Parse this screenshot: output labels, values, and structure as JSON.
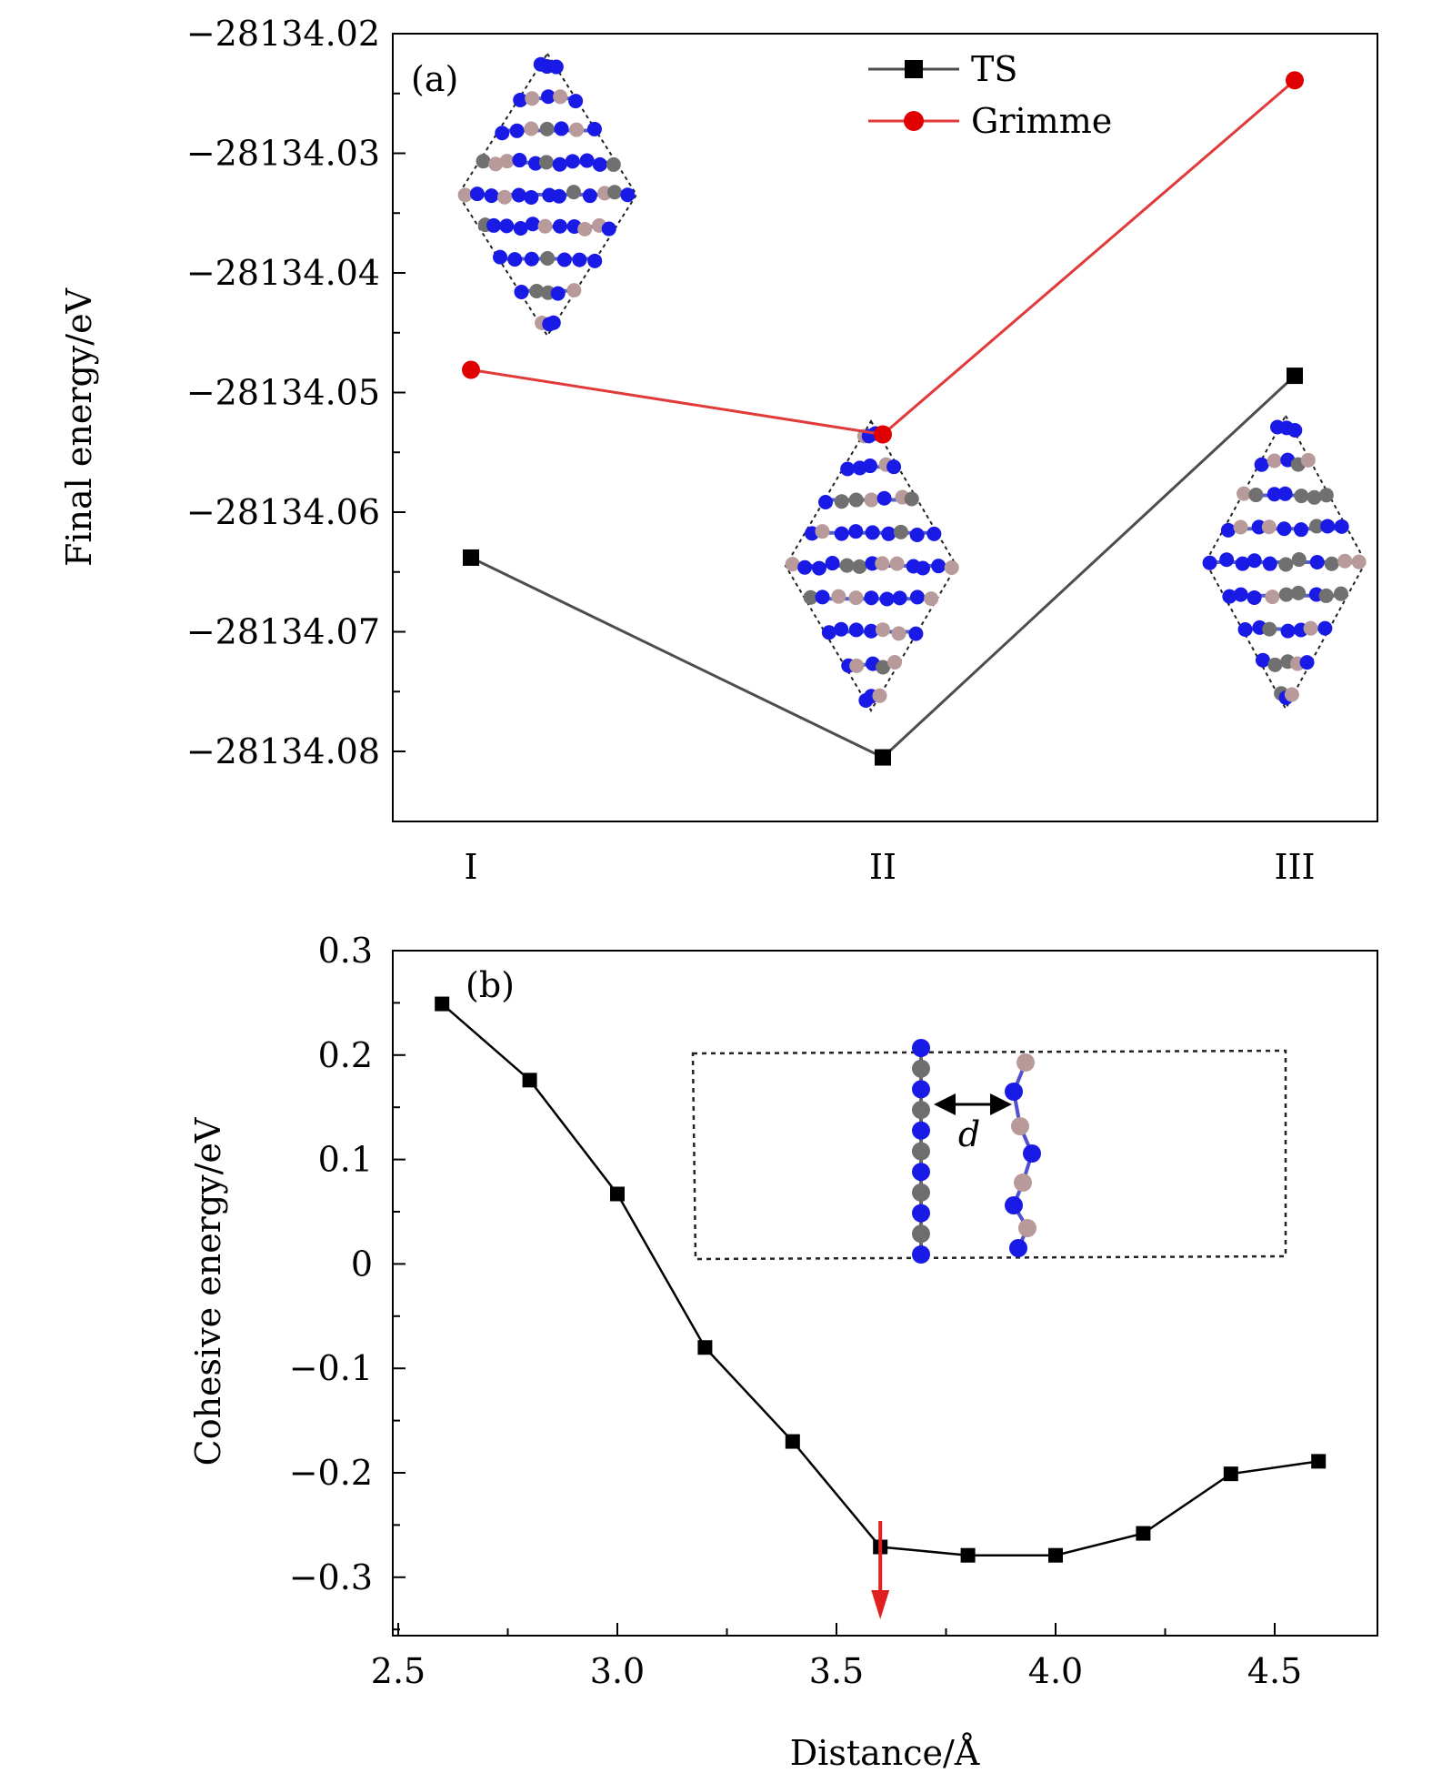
{
  "chart_data": [
    {
      "panel_label": "(a)",
      "type": "line",
      "categories": [
        "I",
        "II",
        "III"
      ],
      "ylabel": "Final energy/eV",
      "ylim": [
        -28134.085,
        -28134.02
      ],
      "yticks": [
        "−28134.02",
        "−28134.03",
        "−28134.04",
        "−28134.05",
        "−28134.06",
        "−28134.07",
        "−28134.08"
      ],
      "ytick_values": [
        -28134.02,
        -28134.03,
        -28134.04,
        -28134.05,
        -28134.06,
        -28134.07,
        -28134.08
      ],
      "legend_position": "top-center",
      "series": [
        {
          "name": "TS",
          "values": [
            -28134.0638,
            -28134.0805,
            -28134.0486
          ],
          "color": "#4d4d4d",
          "marker": "square"
        },
        {
          "name": "Grimme",
          "values": [
            -28134.0481,
            -28134.0535,
            -28134.0239
          ],
          "color": "#e03a3a",
          "marker": "circle"
        }
      ],
      "insets": [
        "structure-I",
        "structure-II",
        "structure-III"
      ]
    },
    {
      "panel_label": "(b)",
      "type": "line",
      "xlabel": "Distance/Å",
      "ylabel": "Cohesive energy/eV",
      "xlim": [
        2.5,
        4.75
      ],
      "ylim": [
        -0.35,
        0.3
      ],
      "xticks": [
        "2.5",
        "3.0",
        "3.5",
        "4.0",
        "4.5"
      ],
      "xtick_values": [
        2.5,
        3.0,
        3.5,
        4.0,
        4.5
      ],
      "yticks": [
        "0.3",
        "0.2",
        "0.1",
        "0",
        "−0.1",
        "−0.2",
        "−0.3"
      ],
      "ytick_values": [
        0.3,
        0.2,
        0.1,
        0,
        -0.1,
        -0.2,
        -0.3
      ],
      "series": [
        {
          "x": [
            2.6,
            2.8,
            3.0,
            3.2,
            3.4,
            3.6,
            3.8,
            4.0,
            4.2,
            4.4,
            4.6
          ],
          "values": [
            0.249,
            0.176,
            0.067,
            -0.08,
            -0.17,
            -0.271,
            -0.279,
            -0.279,
            -0.258,
            -0.201,
            -0.189
          ],
          "color": "#000000",
          "marker": "square"
        }
      ],
      "annotation": {
        "x": 3.6,
        "color": "#e02020",
        "description": "red downward arrow"
      },
      "inset_label": "d"
    }
  ]
}
